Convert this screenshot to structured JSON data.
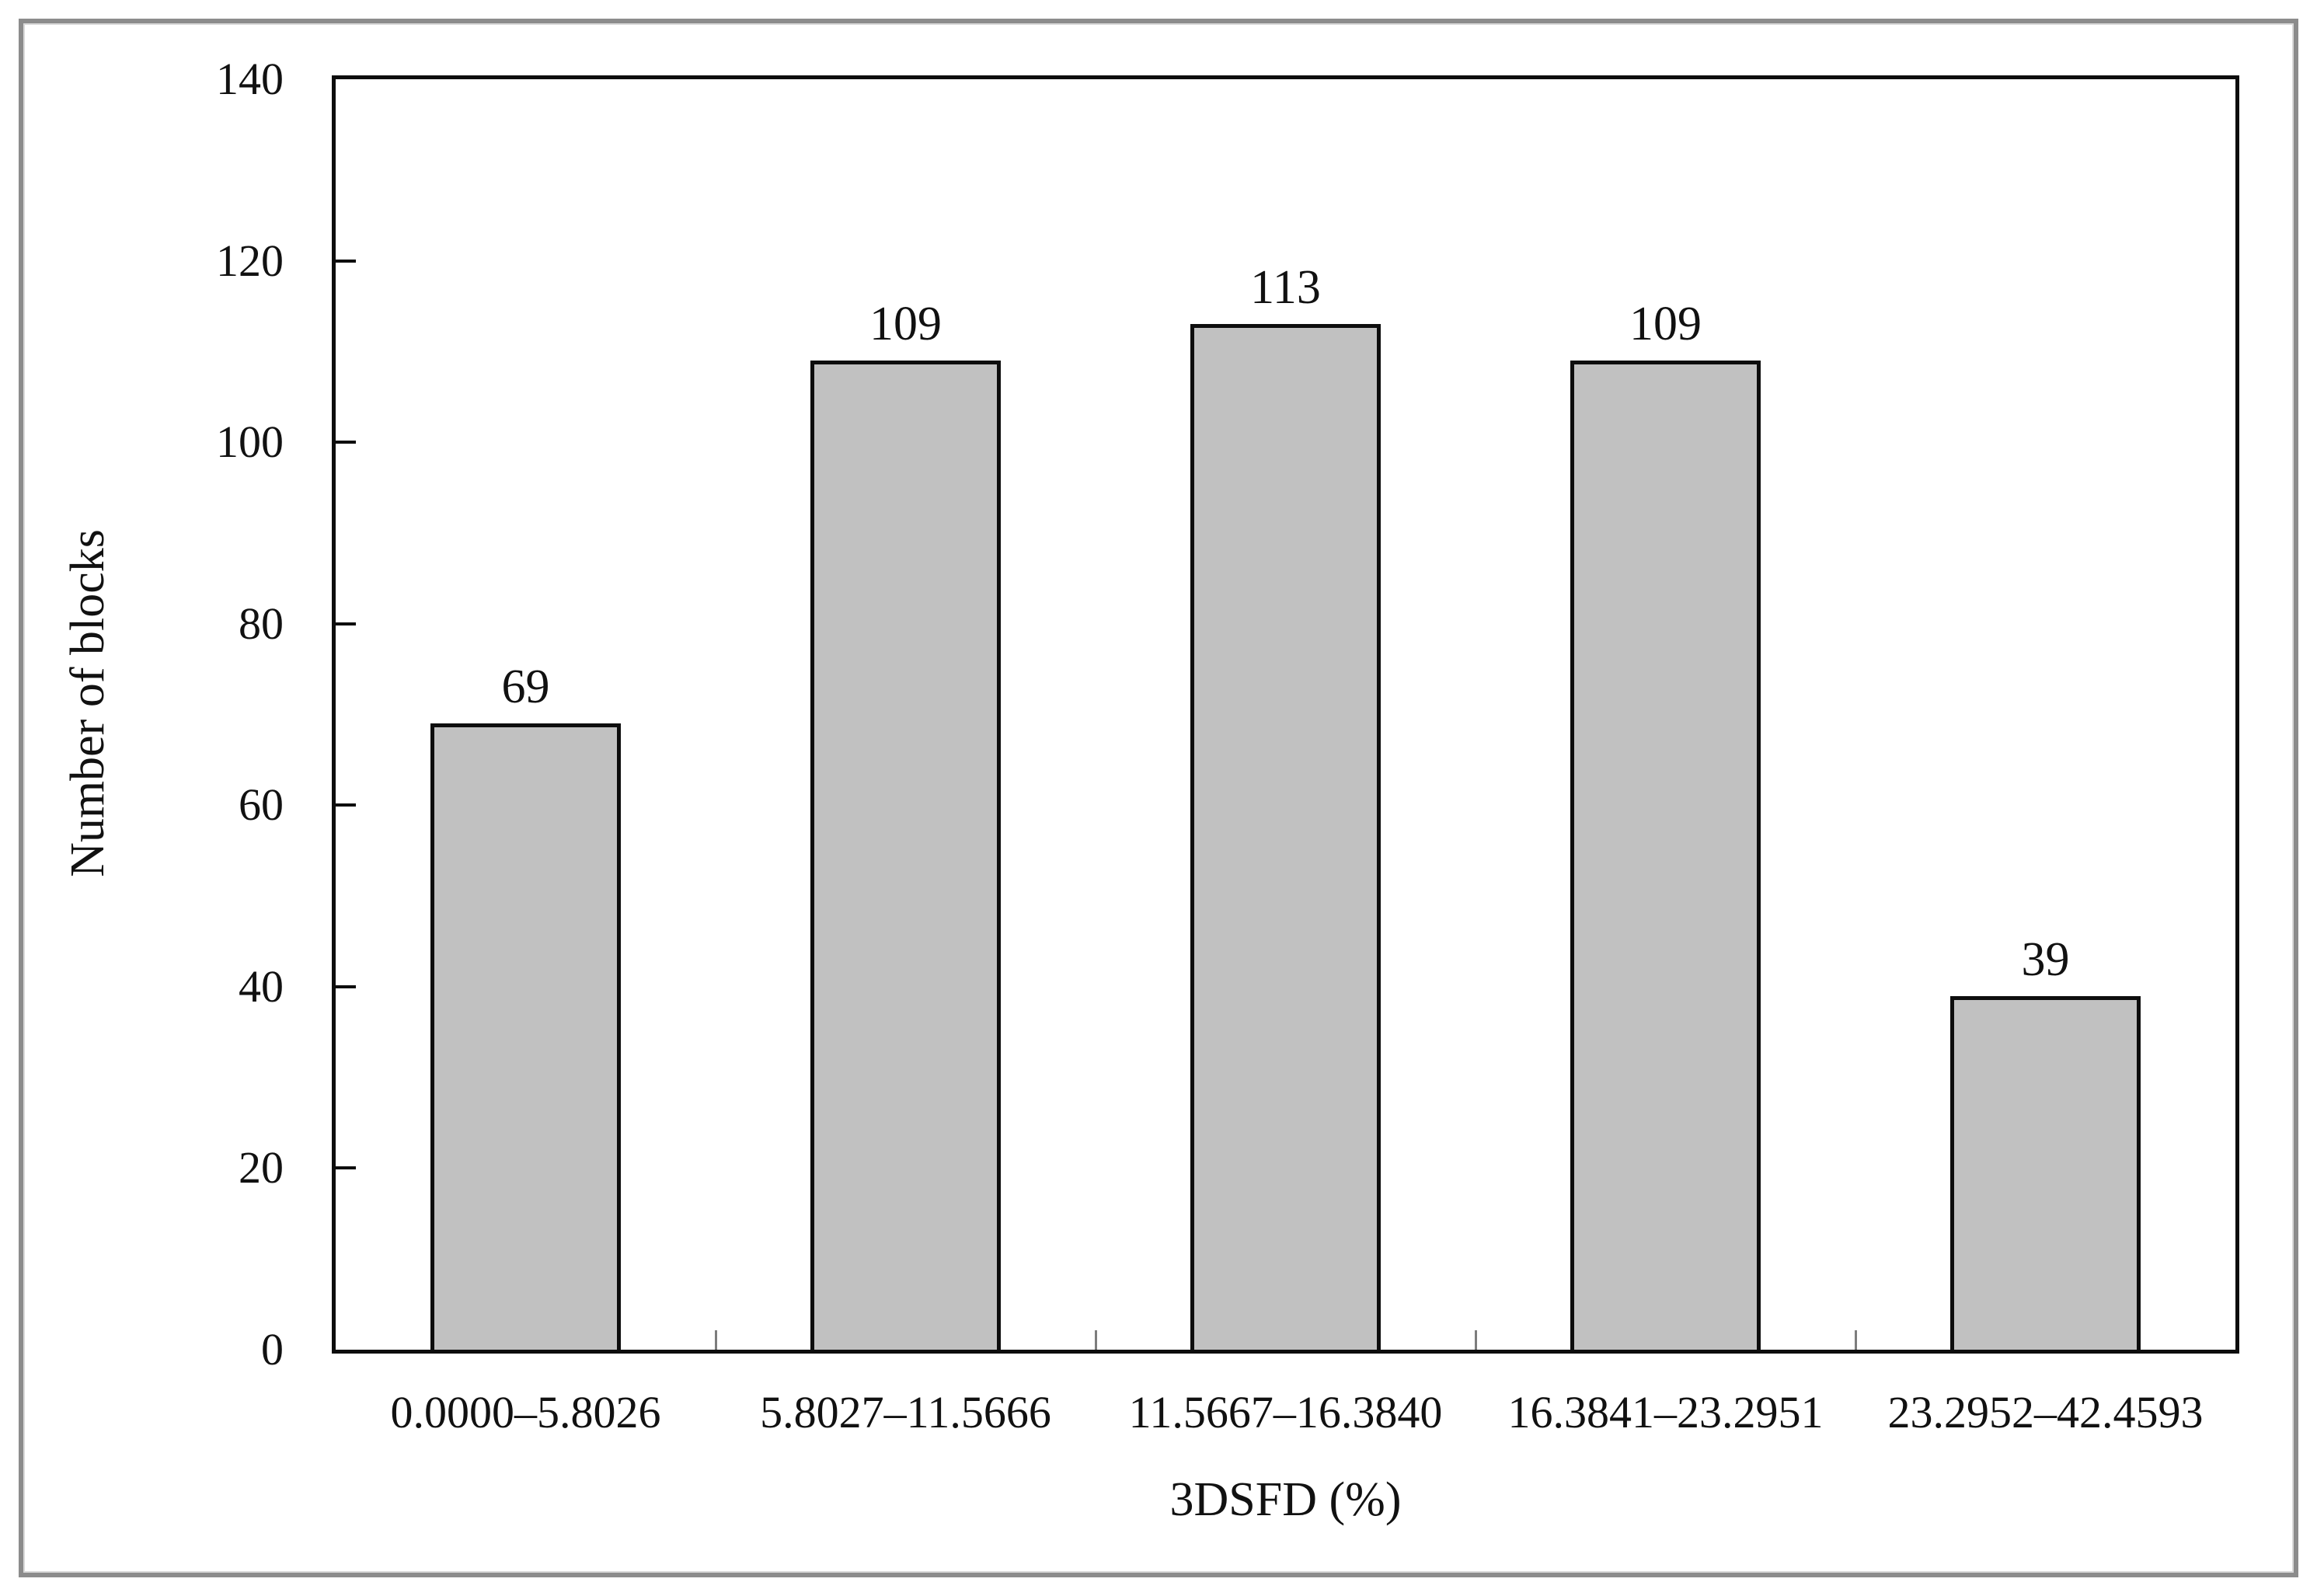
{
  "chart_data": {
    "type": "bar",
    "title": "",
    "categories": [
      "0.0000–5.8026",
      "5.8027–11.5666",
      "11.5667–16.3840",
      "16.3841–23.2951",
      "23.2952–42.4593"
    ],
    "values": [
      69,
      109,
      113,
      109,
      39
    ],
    "bar_labels": [
      "69",
      "109",
      "113",
      "109",
      "39"
    ],
    "xlabel": "3DSFD (%)",
    "ylabel": "Number of blocks",
    "ylim": [
      0,
      140
    ],
    "yticks": [
      0,
      20,
      40,
      60,
      80,
      100,
      120,
      140
    ],
    "ytick_labels": [
      "0",
      "20",
      "40",
      "60",
      "80",
      "100",
      "120",
      "140"
    ],
    "grid": false,
    "legend": null,
    "bar_gap_ratio": 0.5,
    "tick_style": "inward"
  },
  "colors": {
    "background": "#ffffff",
    "page_border": "#8c8c8c",
    "axis": "#0d0d0d",
    "bar_fill": "#c1c1c1",
    "bar_border": "#0d0d0d",
    "text": "#111111",
    "boundary_tick": "#7d7d7d"
  }
}
